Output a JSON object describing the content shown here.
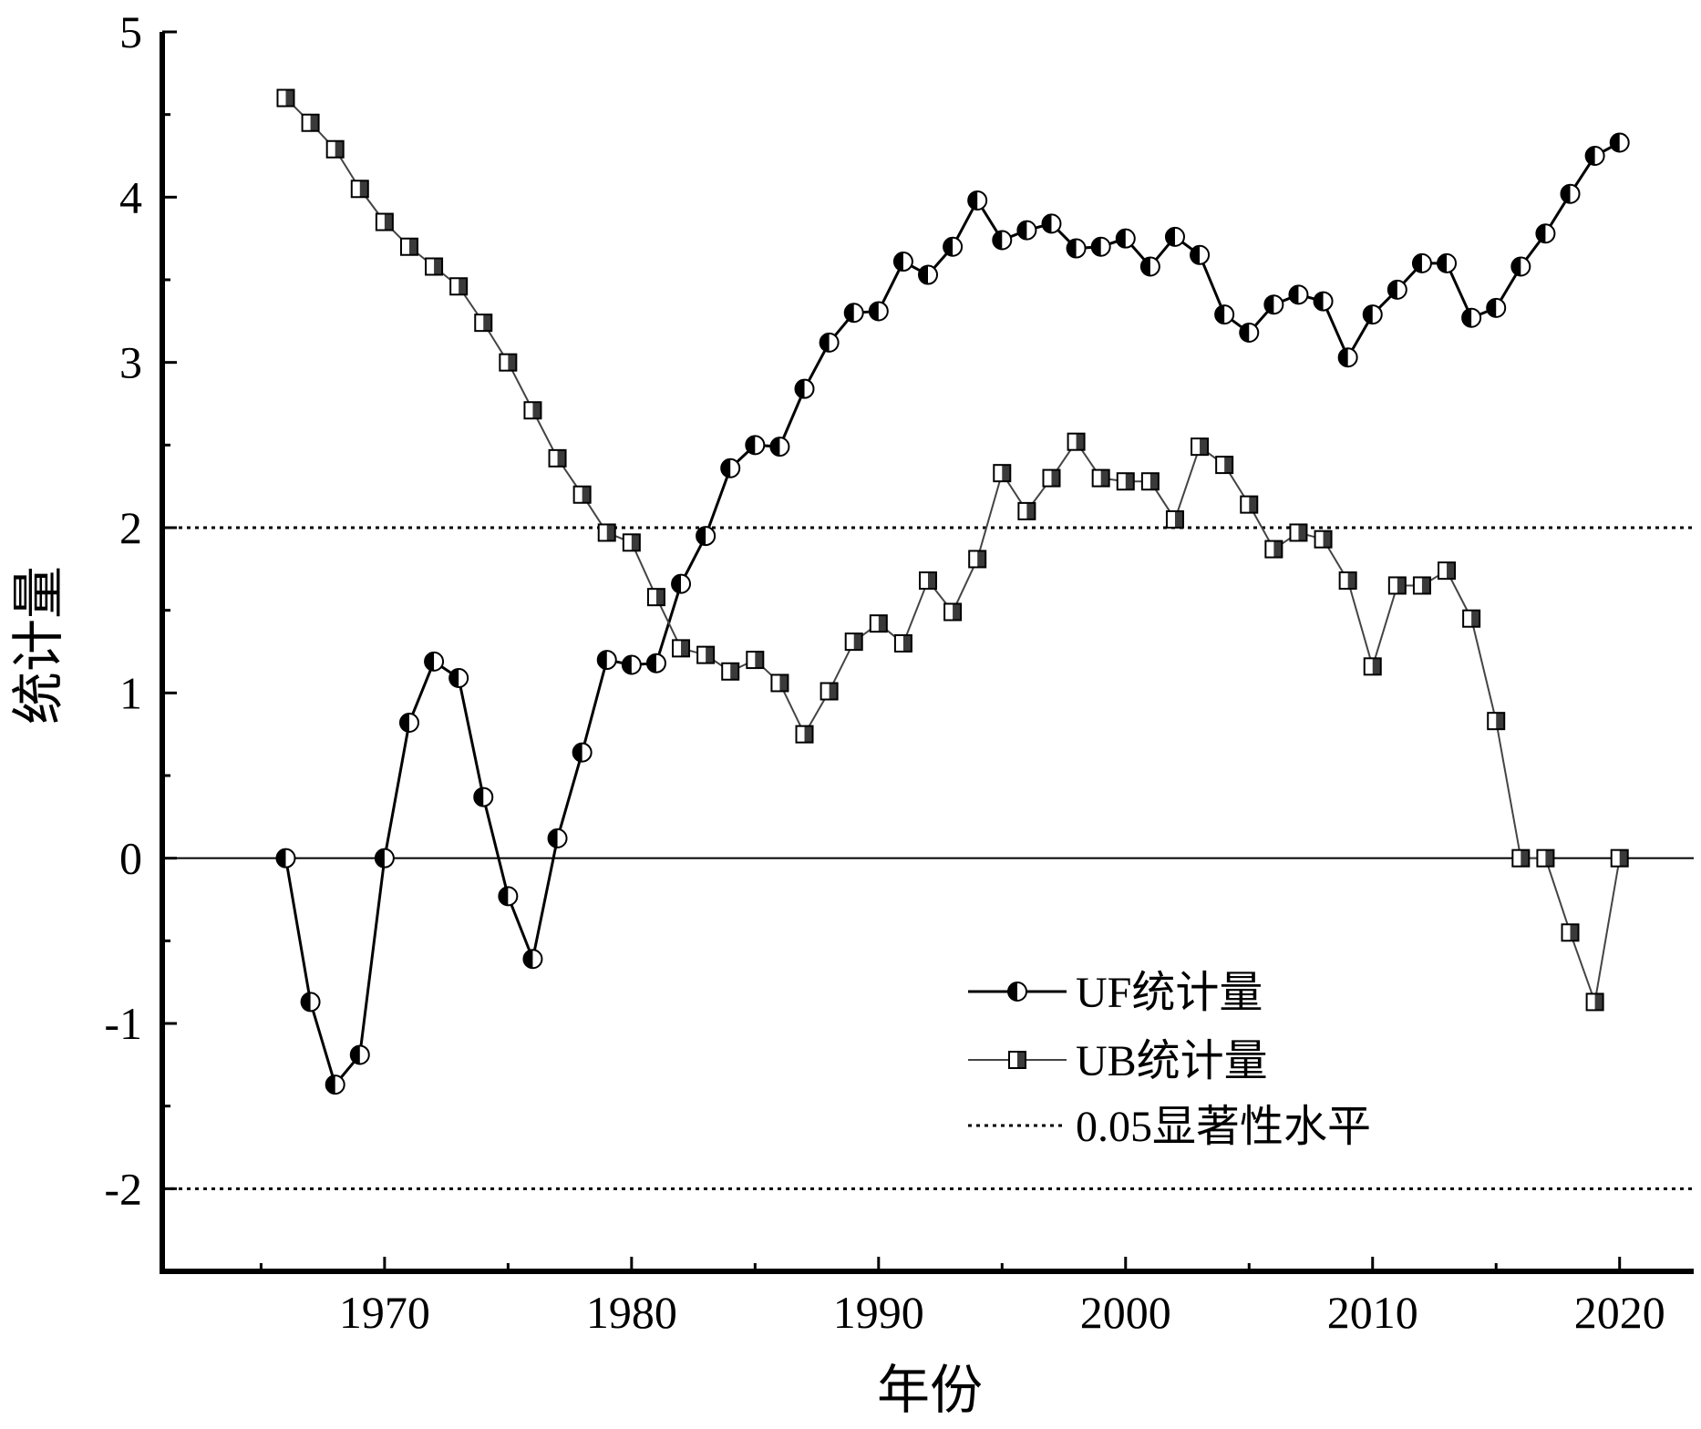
{
  "chart_data": {
    "type": "line",
    "title": "",
    "xlabel": "年份",
    "ylabel": "统计量",
    "xlim": [
      1961,
      2023
    ],
    "ylim": [
      -2.5,
      5
    ],
    "xticks": [
      "1970",
      "1980",
      "1990",
      "2000",
      "2010",
      "2020"
    ],
    "yticks": [
      "-2",
      "-1",
      "0",
      "1",
      "2",
      "3",
      "4",
      "5"
    ],
    "x": [
      1966,
      1967,
      1968,
      1969,
      1970,
      1971,
      1972,
      1973,
      1974,
      1975,
      1976,
      1977,
      1978,
      1979,
      1980,
      1981,
      1982,
      1983,
      1984,
      1985,
      1986,
      1987,
      1988,
      1989,
      1990,
      1991,
      1992,
      1993,
      1994,
      1995,
      1996,
      1997,
      1998,
      1999,
      2000,
      2001,
      2002,
      2003,
      2004,
      2005,
      2006,
      2007,
      2008,
      2009,
      2010,
      2011,
      2012,
      2013,
      2014,
      2015,
      2016,
      2017,
      2018,
      2019,
      2020
    ],
    "series": [
      {
        "name": "UF统计量",
        "color": "#000000",
        "marker": "half-filled-circle",
        "values": [
          0,
          -0.87,
          -1.37,
          -1.19,
          0,
          0.82,
          1.19,
          1.09,
          0.37,
          -0.23,
          -0.61,
          0.12,
          0.64,
          1.2,
          1.17,
          1.18,
          1.66,
          1.95,
          2.36,
          2.5,
          2.49,
          2.84,
          3.12,
          3.3,
          3.31,
          3.61,
          3.53,
          3.7,
          3.98,
          3.74,
          3.8,
          3.84,
          3.69,
          3.7,
          3.75,
          3.58,
          3.76,
          3.65,
          3.29,
          3.18,
          3.35,
          3.41,
          3.37,
          3.03,
          3.29,
          3.44,
          3.6,
          3.6,
          3.27,
          3.33,
          3.58,
          3.78,
          4.02,
          4.25,
          4.33
        ]
      },
      {
        "name": "UB统计量",
        "color": "#444444",
        "marker": "half-filled-square",
        "values": [
          4.6,
          4.45,
          4.29,
          4.05,
          3.85,
          3.7,
          3.58,
          3.46,
          3.24,
          3,
          2.71,
          2.42,
          2.2,
          1.97,
          1.91,
          1.58,
          1.27,
          1.23,
          1.13,
          1.2,
          1.06,
          0.75,
          1.01,
          1.31,
          1.42,
          1.3,
          1.68,
          1.49,
          1.81,
          2.33,
          2.1,
          2.3,
          2.52,
          2.3,
          2.28,
          2.28,
          2.05,
          2.49,
          2.38,
          2.14,
          1.87,
          1.97,
          1.93,
          1.68,
          1.16,
          1.65,
          1.65,
          1.74,
          1.45,
          0.83,
          0,
          0,
          -0.45,
          -0.87,
          0
        ]
      }
    ],
    "reference_lines": [
      {
        "y": 2,
        "style": "dotted"
      },
      {
        "y": -2,
        "style": "dotted"
      },
      {
        "y": 0,
        "style": "solid"
      }
    ],
    "legend": {
      "placement": "bottom-right",
      "entries": [
        "UF统计量",
        "UB统计量",
        "0.05显著性水平"
      ]
    }
  }
}
